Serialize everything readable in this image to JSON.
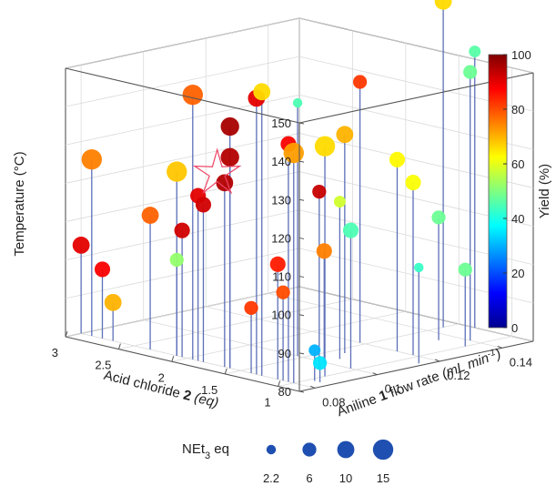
{
  "chart_data": {
    "type": "scatter3d",
    "z_label": "Temperature (°C)",
    "x_label": {
      "pre": "Aniline ",
      "bold": "1",
      "post": " flow rate ",
      "unit": "(mL min",
      "sup": "-1",
      "close": ")"
    },
    "y_label": {
      "pre": "Acid chloride ",
      "bold": "2",
      "post": " (eq)"
    },
    "x_ticks": [
      "0.08",
      "0.1",
      "0.12",
      "0.14"
    ],
    "y_ticks": [
      "3",
      "2.5",
      "2",
      "1.5",
      "1"
    ],
    "z_ticks": [
      "80",
      "90",
      "100",
      "110",
      "120",
      "130",
      "140",
      "150"
    ],
    "x_range": [
      0.075,
      0.15
    ],
    "y_range": [
      0.8,
      3.0
    ],
    "z_range": [
      80,
      150
    ],
    "grid": true,
    "colorbar": {
      "label": "Yield (%)",
      "ticks": [
        "0",
        "20",
        "40",
        "60",
        "80",
        "100"
      ],
      "range": [
        0,
        100
      ],
      "colormap": "jet",
      "position": "right"
    },
    "size_legend": {
      "title_pre": "NEt",
      "title_sub": "3",
      "title_post": " eq",
      "entries": [
        {
          "label": "2.2",
          "value": 2.2
        },
        {
          "label": "6",
          "value": 6
        },
        {
          "label": "10",
          "value": 10
        },
        {
          "label": "15",
          "value": 15
        }
      ],
      "position": "bottom"
    },
    "optimum_marker": "star",
    "points": [
      {
        "x": 0.08,
        "y": 3.0,
        "z": 103,
        "yield": 90,
        "neq": 10
      },
      {
        "x": 0.08,
        "y": 2.8,
        "z": 98,
        "yield": 88,
        "neq": 8
      },
      {
        "x": 0.08,
        "y": 2.7,
        "z": 90,
        "yield": 70,
        "neq": 10
      },
      {
        "x": 0.08,
        "y": 2.9,
        "z": 126,
        "yield": 75,
        "neq": 15
      },
      {
        "x": 0.08,
        "y": 2.35,
        "z": 115,
        "yield": 78,
        "neq": 10
      },
      {
        "x": 0.08,
        "y": 2.1,
        "z": 105,
        "yield": 52,
        "neq": 6
      },
      {
        "x": 0.08,
        "y": 2.05,
        "z": 113,
        "yield": 92,
        "neq": 8
      },
      {
        "x": 0.08,
        "y": 2.1,
        "z": 128,
        "yield": 68,
        "neq": 15
      },
      {
        "x": 0.08,
        "y": 1.9,
        "z": 123,
        "yield": 90,
        "neq": 8
      },
      {
        "x": 0.08,
        "y": 1.85,
        "z": 121,
        "yield": 92,
        "neq": 8
      },
      {
        "x": 0.08,
        "y": 1.65,
        "z": 128,
        "yield": 95,
        "neq": 10
      },
      {
        "x": 0.08,
        "y": 1.6,
        "z": 135,
        "yield": 95,
        "neq": 12
      },
      {
        "x": 0.08,
        "y": 1.6,
        "z": 143,
        "yield": 96,
        "neq": 12
      },
      {
        "x": 0.08,
        "y": 1.95,
        "z": 149,
        "yield": 78,
        "neq": 15
      },
      {
        "x": 0.08,
        "y": 1.4,
        "z": 97,
        "yield": 82,
        "neq": 6
      },
      {
        "x": 0.08,
        "y": 1.35,
        "z": 152,
        "yield": 90,
        "neq": 10
      },
      {
        "x": 0.08,
        "y": 1.3,
        "z": 154,
        "yield": 66,
        "neq": 10
      },
      {
        "x": 0.08,
        "y": 1.05,
        "z": 142,
        "yield": 88,
        "neq": 8
      },
      {
        "x": 0.08,
        "y": 1.0,
        "z": 140,
        "yield": 72,
        "neq": 15
      },
      {
        "x": 0.08,
        "y": 1.15,
        "z": 110,
        "yield": 85,
        "neq": 8
      },
      {
        "x": 0.08,
        "y": 1.1,
        "z": 103,
        "yield": 80,
        "neq": 6
      },
      {
        "x": 0.09,
        "y": 1.0,
        "z": 140,
        "yield": 66,
        "neq": 15
      },
      {
        "x": 0.095,
        "y": 1.2,
        "z": 126,
        "yield": 93,
        "neq": 6
      },
      {
        "x": 0.1,
        "y": 1.05,
        "z": 116,
        "yield": 45,
        "neq": 8
      },
      {
        "x": 0.105,
        "y": 1.3,
        "z": 121,
        "yield": 58,
        "neq": 4
      },
      {
        "x": 0.1,
        "y": 1.3,
        "z": 109,
        "yield": 75,
        "neq": 8
      },
      {
        "x": 0.085,
        "y": 0.95,
        "z": 88,
        "yield": 30,
        "neq": 4
      },
      {
        "x": 0.085,
        "y": 0.9,
        "z": 85,
        "yield": 35,
        "neq": 6
      },
      {
        "x": 0.1,
        "y": 1.55,
        "z": 146,
        "yield": 45,
        "neq": 2.2
      },
      {
        "x": 0.12,
        "y": 1.55,
        "z": 148,
        "yield": 82,
        "neq": 6
      },
      {
        "x": 0.11,
        "y": 1.4,
        "z": 137,
        "yield": 70,
        "neq": 10
      },
      {
        "x": 0.12,
        "y": 1.2,
        "z": 130,
        "yield": 63,
        "neq": 8
      },
      {
        "x": 0.12,
        "y": 1.05,
        "z": 125,
        "yield": 62,
        "neq": 8
      },
      {
        "x": 0.115,
        "y": 0.85,
        "z": 105,
        "yield": 43,
        "neq": 2.2
      },
      {
        "x": 0.135,
        "y": 1.25,
        "z": 112,
        "yield": 48,
        "neq": 6
      },
      {
        "x": 0.135,
        "y": 1.0,
        "z": 100,
        "yield": 48,
        "neq": 6
      },
      {
        "x": 0.14,
        "y": 1.1,
        "z": 150,
        "yield": 48,
        "neq": 6
      },
      {
        "x": 0.145,
        "y": 1.5,
        "z": 165,
        "yield": 66,
        "neq": 10
      },
      {
        "x": 0.15,
        "y": 1.35,
        "z": 152,
        "yield": 46,
        "neq": 4
      }
    ]
  }
}
